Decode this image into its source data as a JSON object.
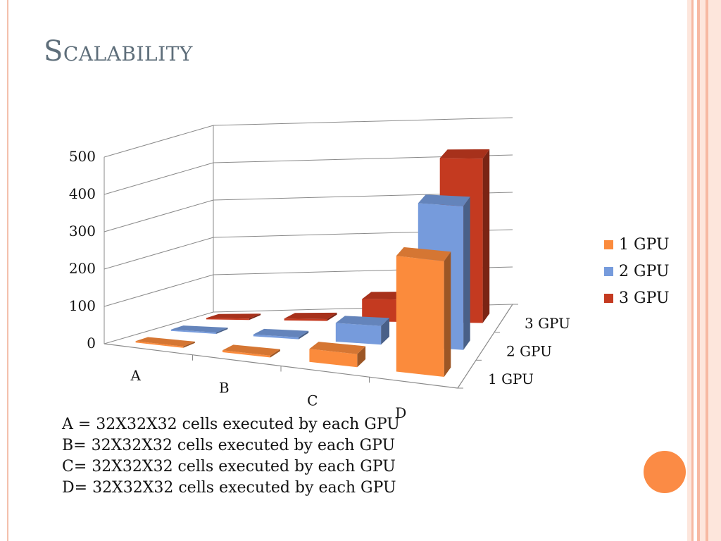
{
  "slide": {
    "title": "Scalability",
    "notes": [
      "A = 32X32X32 cells executed by each GPU",
      "B= 32X32X32 cells executed by each GPU",
      "C= 32X32X32 cells executed by each GPU",
      "D= 32X32X32 cells executed by each GPU"
    ]
  },
  "chart_data": {
    "type": "bar",
    "subtype": "3d-column",
    "categories": [
      "A",
      "B",
      "C",
      "D"
    ],
    "depth_labels": [
      "1 GPU",
      "2 GPU",
      "3 GPU"
    ],
    "series": [
      {
        "name": "1 GPU",
        "color": "#fb8b3c",
        "values": [
          3,
          5,
          35,
          310
        ]
      },
      {
        "name": "2 GPU",
        "color": "#769bdc",
        "values": [
          3,
          5,
          50,
          385
        ]
      },
      {
        "name": "3 GPU",
        "color": "#c43a20",
        "values": [
          3,
          5,
          60,
          440
        ]
      }
    ],
    "y_ticks": [
      "0",
      "100",
      "200",
      "300",
      "400",
      "500"
    ],
    "ylim": [
      0,
      500
    ],
    "grid": true,
    "legend": "right"
  }
}
